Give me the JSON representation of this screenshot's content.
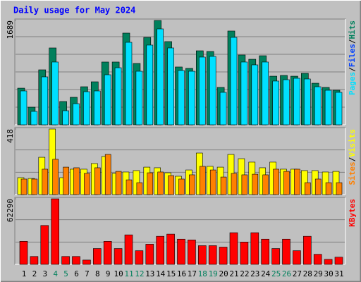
{
  "chart_data": [
    {
      "type": "bar",
      "title": "Daily usage for May 2024",
      "ylim": [
        0,
        1689
      ],
      "yticks": [
        1689
      ],
      "separator": "/",
      "series": [
        {
          "name": "Hits",
          "color": "#00805c",
          "values": [
            593,
            285,
            890,
            1244,
            377,
            445,
            616,
            696,
            1016,
            1016,
            1484,
            993,
            1415,
            1689,
            1347,
            936,
            913,
            1198,
            1187,
            605,
            1518,
            1130,
            1061,
            1118,
            787,
            799,
            787,
            833,
            673,
            605,
            559
          ]
        },
        {
          "name": "Files",
          "color": "#0040ff",
          "values": [
            210,
            90,
            300,
            420,
            80,
            130,
            200,
            210,
            320,
            360,
            520,
            330,
            500,
            610,
            480,
            340,
            330,
            430,
            420,
            200,
            550,
            390,
            370,
            390,
            270,
            280,
            290,
            290,
            240,
            210,
            200
          ]
        },
        {
          "name": "Pages",
          "color": "#00e0ff",
          "values": [
            548,
            217,
            776,
            1016,
            228,
            342,
            536,
            548,
            810,
            924,
            1335,
            867,
            1290,
            1552,
            1244,
            879,
            867,
            1096,
            1107,
            525,
            1415,
            1016,
            970,
            1016,
            708,
            730,
            753,
            742,
            616,
            559,
            525
          ]
        }
      ]
    },
    {
      "type": "bar",
      "ylim": [
        0,
        418
      ],
      "yticks": [
        418
      ],
      "separator": "/",
      "series": [
        {
          "name": "Visits",
          "color": "#ffff00",
          "values": [
            108,
            103,
            238,
            418,
            108,
            162,
            162,
            198,
            243,
            135,
            144,
            153,
            175,
            171,
            139,
            117,
            157,
            265,
            180,
            175,
            256,
            229,
            207,
            171,
            207,
            162,
            162,
            153,
            153,
            144,
            148
          ]
        },
        {
          "name": "Sites",
          "color": "#ff8000",
          "values": [
            99,
            99,
            162,
            225,
            175,
            171,
            135,
            171,
            256,
            148,
            94,
            76,
            139,
            144,
            121,
            99,
            126,
            180,
            157,
            112,
            135,
            126,
            130,
            126,
            162,
            148,
            162,
            76,
            99,
            76,
            76
          ]
        }
      ]
    },
    {
      "type": "bar",
      "ylim": [
        0,
        62290
      ],
      "yticks": [
        62290
      ],
      "series": [
        {
          "name": "KBytes",
          "color": "#ff0000",
          "values": [
            21892,
            7517,
            36970,
            62290,
            7517,
            7517,
            4107,
            15051,
            21892,
            15051,
            28050,
            13000,
            19157,
            26681,
            28735,
            23946,
            23262,
            17788,
            17788,
            16420,
            30104,
            21208,
            30104,
            23946,
            15051,
            23946,
            13000,
            26681,
            9570,
            4791,
            6844
          ]
        }
      ],
      "categories": [
        "1",
        "2",
        "3",
        "4",
        "5",
        "6",
        "7",
        "8",
        "9",
        "10",
        "11",
        "12",
        "13",
        "14",
        "15",
        "16",
        "17",
        "18",
        "19",
        "20",
        "21",
        "22",
        "23",
        "24",
        "25",
        "26",
        "27",
        "28",
        "29",
        "30",
        "31"
      ],
      "category_colors": [
        "#000000",
        "#000000",
        "#000000",
        "#00805c",
        "#00805c",
        "#000000",
        "#000000",
        "#000000",
        "#000000",
        "#000000",
        "#00805c",
        "#00805c",
        "#000000",
        "#000000",
        "#000000",
        "#000000",
        "#000000",
        "#00805c",
        "#00805c",
        "#000000",
        "#000000",
        "#000000",
        "#000000",
        "#000000",
        "#00805c",
        "#00805c",
        "#000000",
        "#000000",
        "#000000",
        "#000000",
        "#000000"
      ]
    }
  ]
}
